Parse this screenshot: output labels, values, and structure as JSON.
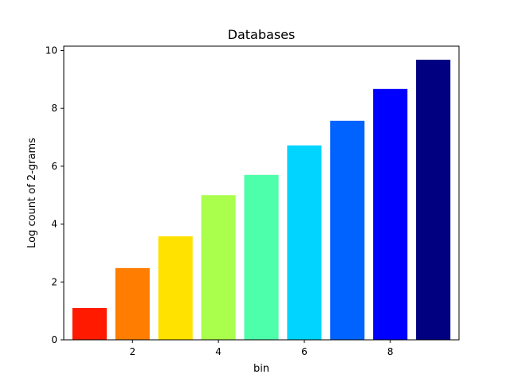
{
  "chart_data": {
    "type": "bar",
    "title": "Databases",
    "xlabel": "bin",
    "ylabel": "Log count of 2-grams",
    "x": [
      1,
      2,
      3,
      4,
      5,
      6,
      7,
      8,
      9
    ],
    "values": [
      1.1,
      2.48,
      3.58,
      5.0,
      5.7,
      6.72,
      7.57,
      8.67,
      9.68
    ],
    "colors": [
      "#ff1a00",
      "#ff7d00",
      "#ffe200",
      "#aaff4d",
      "#4dffaa",
      "#00d4ff",
      "#0062ff",
      "#0000ff",
      "#000080"
    ],
    "xlim": [
      0.4,
      9.6
    ],
    "ylim": [
      0,
      10.15
    ],
    "xticks": [
      2,
      4,
      6,
      8
    ],
    "yticks": [
      0,
      2,
      4,
      6,
      8,
      10
    ],
    "grid": false,
    "legend": "none"
  }
}
